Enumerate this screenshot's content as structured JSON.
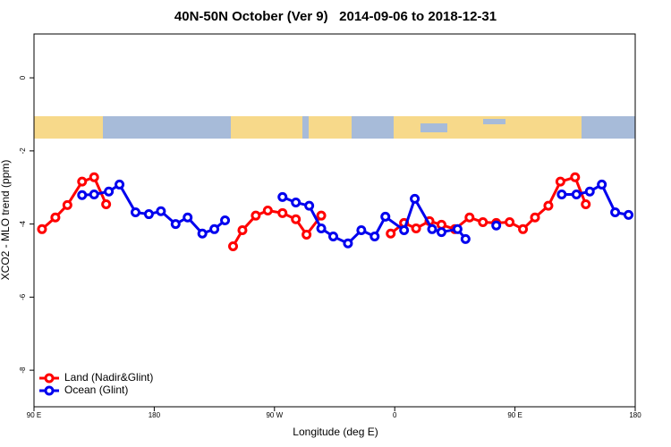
{
  "chart_data": {
    "type": "line",
    "title": "40N-50N October (Ver 9)   2014-09-06 to 2018-12-31",
    "xlabel": "Longitude (deg E)",
    "ylabel": "XCO2 - MLO trend (ppm)",
    "xlim": [
      90,
      540
    ],
    "xticks": [
      {
        "value": 90,
        "label": "90 E"
      },
      180,
      {
        "value": 270,
        "label": "90 W"
      },
      {
        "value": 360,
        "label": "0"
      },
      {
        "value": 450,
        "label": "90 E"
      },
      {
        "value": 540,
        "label": "180"
      }
    ],
    "ylim": [
      -9,
      1.2
    ],
    "yticks": [
      0,
      -2,
      -4,
      -6,
      -8
    ],
    "legend": "lower left",
    "series": [
      {
        "name": "Land (Nadir&Glint)",
        "color": "#ff0000",
        "x": [
          96,
          106,
          115,
          126,
          135,
          144,
          190,
          239,
          246,
          256,
          265,
          276,
          286,
          294,
          305,
          330,
          357,
          367,
          376,
          386,
          395,
          405,
          416,
          426,
          436,
          446,
          456,
          465,
          475,
          484,
          495,
          503
        ],
        "values": [
          -4.14,
          -3.82,
          -3.48,
          -2.84,
          -2.72,
          -3.46,
          null,
          -4.61,
          -4.17,
          -3.77,
          -3.63,
          -3.7,
          -3.87,
          -4.29,
          -3.77,
          null,
          -4.26,
          -3.97,
          -4.12,
          -3.92,
          -4.02,
          -4.14,
          -3.82,
          -3.95,
          -3.97,
          -3.95,
          -4.14,
          -3.82,
          -3.5,
          -2.84,
          -2.72,
          -3.46
        ]
      },
      {
        "name": "Ocean (Glint)",
        "color": "#0000ee",
        "x": [
          126,
          135,
          146,
          154,
          166,
          176,
          185,
          196,
          205,
          216,
          225,
          233,
          255,
          276,
          286,
          296,
          305,
          314,
          325,
          335,
          345,
          353,
          367,
          375,
          388,
          395,
          407,
          413,
          425,
          436,
          460,
          485,
          496,
          506,
          515,
          525,
          535
        ],
        "values": [
          -3.21,
          -3.19,
          -3.11,
          -2.92,
          -3.68,
          -3.73,
          -3.65,
          -4.0,
          -3.82,
          -4.26,
          -4.14,
          -3.9,
          null,
          -3.26,
          -3.41,
          -3.5,
          -4.12,
          -4.34,
          -4.53,
          -4.17,
          -4.34,
          -3.8,
          -4.17,
          -3.31,
          -4.14,
          -4.22,
          -4.14,
          -4.41,
          null,
          -4.04,
          null,
          -3.19,
          -3.19,
          -3.11,
          -2.92,
          -3.68,
          -3.75
        ]
      }
    ]
  }
}
